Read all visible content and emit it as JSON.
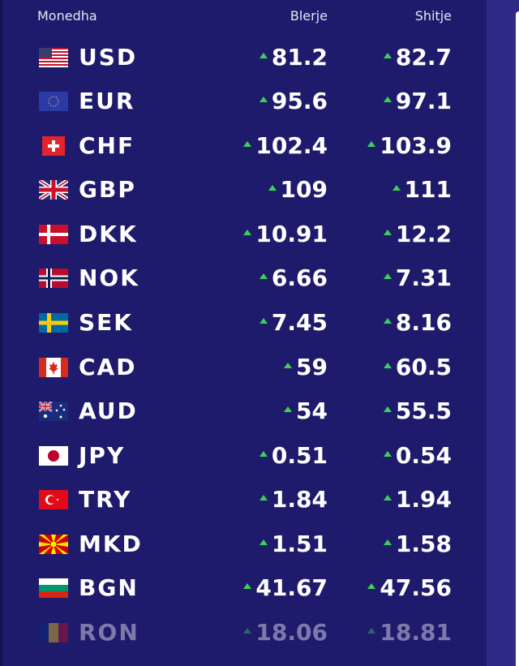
{
  "header": {
    "currency": "Monedha",
    "buy": "Blerje",
    "sell": "Shitje"
  },
  "colors": {
    "panel": "#1e1a6c",
    "up_arrow": "#39d353",
    "text": "#ffffff"
  },
  "rates": [
    {
      "code": "USD",
      "flag": "us-flag-icon",
      "buy": "81.2",
      "sell": "82.7"
    },
    {
      "code": "EUR",
      "flag": "eu-flag-icon",
      "buy": "95.6",
      "sell": "97.1"
    },
    {
      "code": "CHF",
      "flag": "ch-flag-icon",
      "buy": "102.4",
      "sell": "103.9"
    },
    {
      "code": "GBP",
      "flag": "gb-flag-icon",
      "buy": "109",
      "sell": "111"
    },
    {
      "code": "DKK",
      "flag": "dk-flag-icon",
      "buy": "10.91",
      "sell": "12.2"
    },
    {
      "code": "NOK",
      "flag": "no-flag-icon",
      "buy": "6.66",
      "sell": "7.31"
    },
    {
      "code": "SEK",
      "flag": "se-flag-icon",
      "buy": "7.45",
      "sell": "8.16"
    },
    {
      "code": "CAD",
      "flag": "ca-flag-icon",
      "buy": "59",
      "sell": "60.5"
    },
    {
      "code": "AUD",
      "flag": "au-flag-icon",
      "buy": "54",
      "sell": "55.5"
    },
    {
      "code": "JPY",
      "flag": "jp-flag-icon",
      "buy": "0.51",
      "sell": "0.54"
    },
    {
      "code": "TRY",
      "flag": "tr-flag-icon",
      "buy": "1.84",
      "sell": "1.94"
    },
    {
      "code": "MKD",
      "flag": "mk-flag-icon",
      "buy": "1.51",
      "sell": "1.58"
    },
    {
      "code": "BGN",
      "flag": "bg-flag-icon",
      "buy": "41.67",
      "sell": "47.56"
    },
    {
      "code": "RON",
      "flag": "ro-flag-icon",
      "buy": "18.06",
      "sell": "18.81"
    }
  ]
}
